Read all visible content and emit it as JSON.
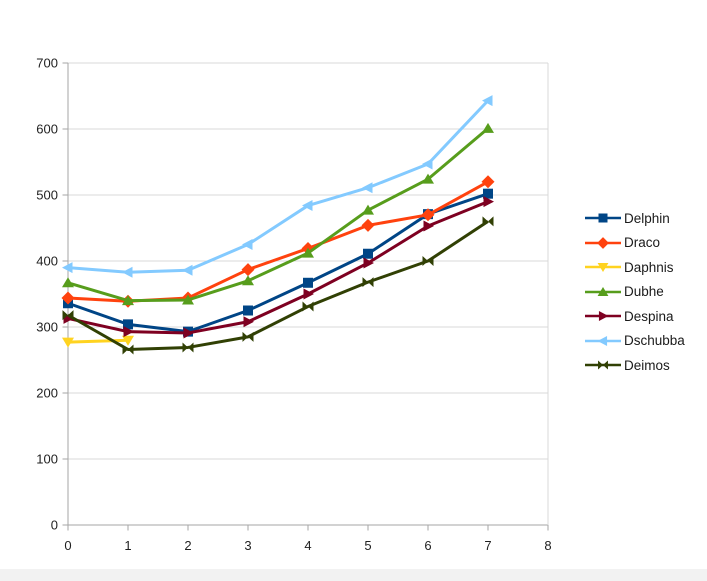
{
  "window": {
    "background": "#ffffff",
    "bottom_strip_color": "#f2f2f2"
  },
  "chart_data": {
    "type": "line",
    "title": "",
    "xlabel": "",
    "ylabel": "",
    "x": [
      0,
      1,
      2,
      3,
      4,
      5,
      6,
      7
    ],
    "series": [
      {
        "name": "Delphin",
        "color": "#004586",
        "marker": "square",
        "values": [
          336,
          304,
          293,
          325,
          367,
          411,
          471,
          502
        ]
      },
      {
        "name": "Draco",
        "color": "#FF420E",
        "marker": "diamond",
        "values": [
          344,
          339,
          344,
          387,
          419,
          454,
          470,
          520
        ]
      },
      {
        "name": "Daphnis",
        "color": "#FFD320",
        "marker": "triangle-down",
        "values": [
          277,
          280
        ]
      },
      {
        "name": "Dubhe",
        "color": "#579D1C",
        "marker": "triangle-up",
        "values": [
          367,
          340,
          341,
          370,
          412,
          477,
          524,
          601
        ]
      },
      {
        "name": "Despina",
        "color": "#7E0021",
        "marker": "triangle-right",
        "values": [
          313,
          293,
          291,
          308,
          350,
          397,
          453,
          490
        ]
      },
      {
        "name": "Dschubba",
        "color": "#83CAFF",
        "marker": "triangle-left",
        "values": [
          390,
          383,
          386,
          425,
          484,
          511,
          547,
          643
        ]
      },
      {
        "name": "Deimos",
        "color": "#314004",
        "marker": "bowtie",
        "values": [
          318,
          266,
          269,
          285,
          331,
          368,
          400,
          460
        ]
      }
    ],
    "xlim": [
      0,
      8
    ],
    "ylim": [
      0,
      700
    ],
    "x_ticks": [
      "0",
      "1",
      "2",
      "3",
      "4",
      "5",
      "6",
      "7",
      "8"
    ],
    "y_ticks": [
      "0",
      "100",
      "200",
      "300",
      "400",
      "500",
      "600",
      "700"
    ],
    "grid": "horizontal",
    "legend_position": "right-middle",
    "axis_color": "#a6a6a6",
    "grid_color": "#d9d9d9",
    "tick_label_color": "#1f1f1f"
  }
}
